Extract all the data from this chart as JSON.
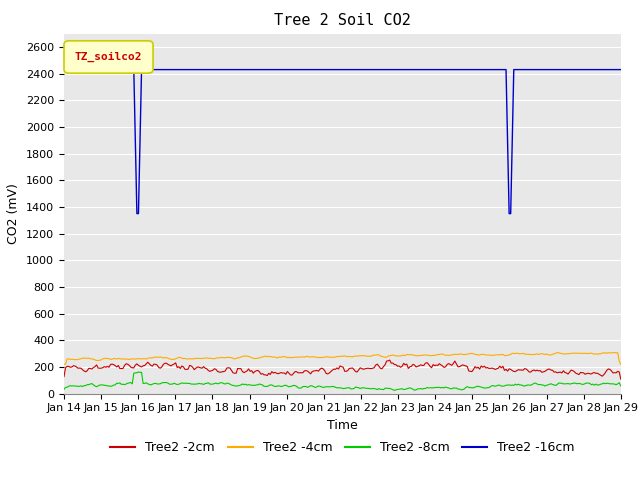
{
  "title": "Tree 2 Soil CO2",
  "ylabel": "CO2 (mV)",
  "xlabel": "Time",
  "ylim": [
    0,
    2700
  ],
  "yticks": [
    0,
    200,
    400,
    600,
    800,
    1000,
    1200,
    1400,
    1600,
    1800,
    2000,
    2200,
    2400,
    2600
  ],
  "xtick_labels": [
    "Jan 14",
    "Jan 15",
    "Jan 16",
    "Jan 17",
    "Jan 18",
    "Jan 19",
    "Jan 20",
    "Jan 21",
    "Jan 22",
    "Jan 23",
    "Jan 24",
    "Jan 25",
    "Jan 26",
    "Jan 27",
    "Jan 28",
    "Jan 29"
  ],
  "bg_color": "#e8e8e8",
  "grid_color": "white",
  "legend_box_label": "TZ_soilco2",
  "legend_box_bg": "#ffffcc",
  "legend_box_edge": "#cccc00",
  "legend_box_text_color": "#cc0000",
  "series": [
    {
      "label": "Tree2 -2cm",
      "color": "#cc0000"
    },
    {
      "label": "Tree2 -4cm",
      "color": "#ffaa00"
    },
    {
      "label": "Tree2 -8cm",
      "color": "#00cc00"
    },
    {
      "label": "Tree2 -16cm",
      "color": "#0000cc"
    }
  ],
  "title_fontsize": 11,
  "axis_label_fontsize": 9,
  "tick_fontsize": 8,
  "legend_fontsize": 9
}
